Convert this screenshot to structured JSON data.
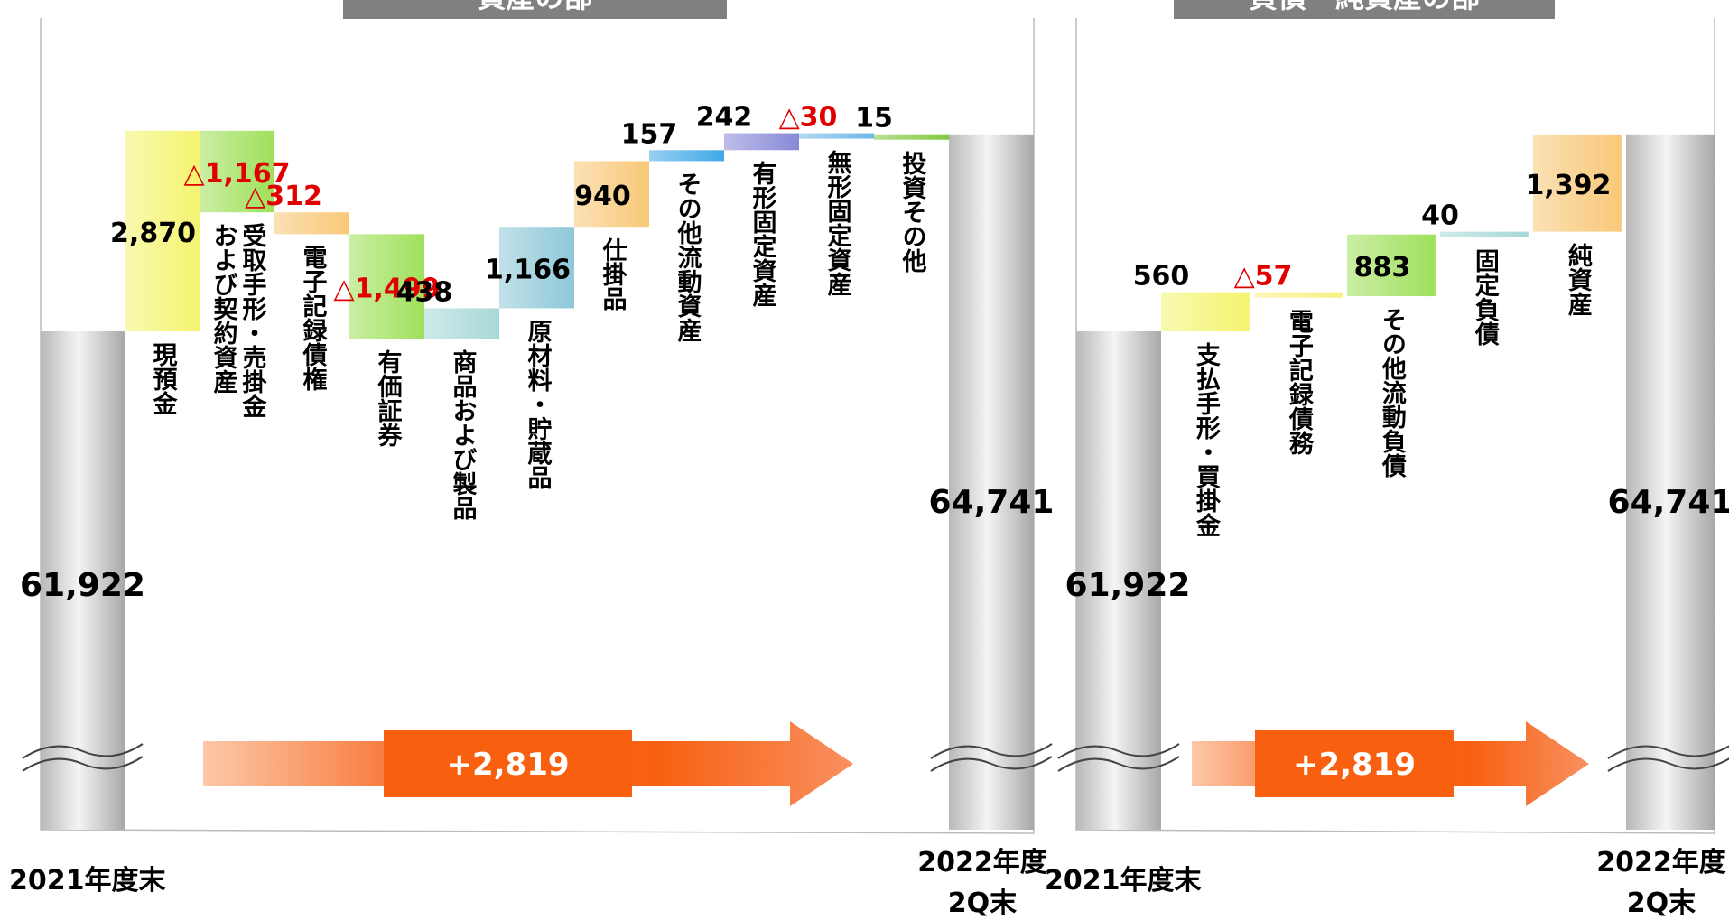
{
  "chart_data": [
    {
      "type": "waterfall",
      "title": "資産の部",
      "start_label": "2021年度末",
      "start_value": 61922,
      "start_value_label": "61,922",
      "end_label": [
        "2022年度",
        "2Q末"
      ],
      "end_value": 64741,
      "end_value_label": "64,741",
      "categories": [
        "現預金",
        "受取手形・売掛金および契約資産",
        "電子記録債権",
        "有価証券",
        "商品および製品",
        "原材料・貯蔵品",
        "仕掛品",
        "その他流動資産",
        "有形固定資産",
        "無形固定資産",
        "投資その他"
      ],
      "values": [
        2870,
        -1167,
        -312,
        -1499,
        438,
        1166,
        940,
        157,
        242,
        -30,
        15
      ],
      "value_labels": [
        "2,870",
        "△1,167",
        "△312",
        "△1,499",
        "438",
        "1,166",
        "940",
        "157",
        "242",
        "△30",
        "15"
      ],
      "colors": [
        "#f4f470",
        "#9fe05a",
        "#f8c878",
        "#9fe05a",
        "#a8d8d8",
        "#8ec8d8",
        "#f8c878",
        "#40a8e8",
        "#8888d8",
        "#70b8e8",
        "#80c840"
      ],
      "annotation": "+2,819"
    },
    {
      "type": "waterfall",
      "title": "負債・純資産の部",
      "start_label": "2021年度末",
      "start_value": 61922,
      "start_value_label": "61,922",
      "end_label": [
        "2022年度",
        "2Q末"
      ],
      "end_value": 64741,
      "end_value_label": "64,741",
      "categories": [
        "支払手形・買掛金",
        "電子記録債務",
        "その他流動負債",
        "固定負債",
        "純資産"
      ],
      "values": [
        560,
        -57,
        883,
        40,
        1392
      ],
      "value_labels": [
        "560",
        "△57",
        "883",
        "40",
        "1,392"
      ],
      "colors": [
        "#f4f470",
        "#f8f080",
        "#9fe05a",
        "#a8d8d8",
        "#f8c878"
      ],
      "annotation": "+2,819"
    }
  ]
}
